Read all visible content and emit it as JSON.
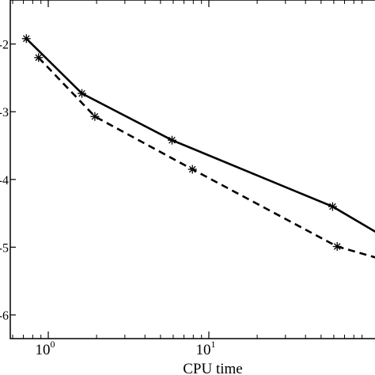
{
  "chart_data": {
    "type": "line",
    "xlabel": "CPU time",
    "ylabel": "",
    "xscale": "log",
    "xlim": [
      0.58,
      120
    ],
    "ylim": [
      -6.35,
      -1.35
    ],
    "x_ticks": [
      {
        "base": "10",
        "exp": "0",
        "value": 1
      },
      {
        "base": "10",
        "exp": "1",
        "value": 10
      }
    ],
    "y_ticks": [
      {
        "label": "-2",
        "value": -2
      },
      {
        "label": "-3",
        "value": -3
      },
      {
        "label": "-4",
        "value": -4
      },
      {
        "label": "-5",
        "value": -5
      },
      {
        "label": "-6",
        "value": -6
      }
    ],
    "series": [
      {
        "style": "solid",
        "marker": "asterisk",
        "color": "#000000",
        "x": [
          0.73,
          1.62,
          5.9,
          59,
          120
        ],
        "y": [
          -1.92,
          -2.73,
          -3.42,
          -4.4,
          -4.83
        ],
        "marker_count": 4
      },
      {
        "style": "dashed",
        "marker": "asterisk",
        "color": "#000000",
        "x": [
          0.87,
          1.95,
          7.9,
          63,
          120
        ],
        "y": [
          -2.2,
          -3.07,
          -3.85,
          -4.99,
          -5.18
        ],
        "marker_count": 4
      }
    ]
  }
}
